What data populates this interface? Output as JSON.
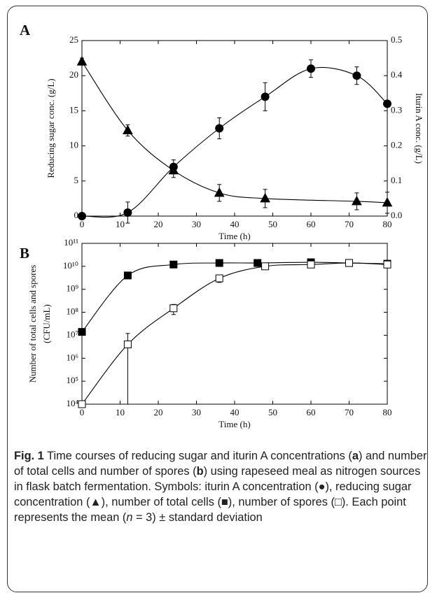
{
  "chart_data": [
    {
      "type": "line",
      "panel_label": "A",
      "xlabel": "Time (h)",
      "ylabel": "Reducing sugar conc. (g/L)",
      "y2label": "Iturin A conc. (g/L)",
      "xlim": [
        0,
        80
      ],
      "xticks": [
        0,
        10,
        20,
        30,
        40,
        50,
        60,
        70,
        80
      ],
      "ylim": [
        0,
        25
      ],
      "yticks": [
        0,
        5,
        10,
        15,
        20,
        25
      ],
      "y2lim": [
        0,
        0.5
      ],
      "y2ticks": [
        {
          "value": 0,
          "label": "0.0"
        },
        0.1,
        0.2,
        0.3,
        0.4,
        0.5
      ],
      "series": [
        {
          "marker": "triangle",
          "filled": true,
          "color": "#000000",
          "axis": "y",
          "x": [
            0,
            12,
            24,
            36,
            48,
            72,
            80
          ],
          "values": [
            22,
            12.2,
            6.5,
            3.3,
            2.5,
            2.1,
            1.9
          ],
          "errors": [
            0.5,
            0.8,
            1,
            1.2,
            1.3,
            1.2,
            1.5
          ]
        },
        {
          "marker": "circle",
          "filled": true,
          "color": "#000000",
          "axis": "y2",
          "x": [
            0,
            12,
            24,
            36,
            48,
            60,
            72,
            80
          ],
          "values": [
            0,
            0.01,
            0.14,
            0.25,
            0.34,
            0.42,
            0.4,
            0.32
          ],
          "errors": [
            0,
            0.03,
            0.02,
            0.03,
            0.04,
            0.025,
            0.025,
            0
          ]
        }
      ]
    },
    {
      "type": "line",
      "panel_label": "B",
      "xlabel": "Time (h)",
      "ylabel": [
        "Number of total cells and spores",
        "(CFU/mL)"
      ],
      "ylog": true,
      "xlim": [
        0,
        80
      ],
      "xticks": [
        0,
        10,
        20,
        30,
        40,
        50,
        60,
        70,
        80
      ],
      "ylim": [
        10000,
        100000000000
      ],
      "yticks": [
        {
          "value": 10000,
          "label": "10⁴"
        },
        {
          "value": 100000,
          "label": "10⁵"
        },
        {
          "value": 1000000,
          "label": "10⁶"
        },
        {
          "value": 10000000,
          "label": "10⁷"
        },
        {
          "value": 100000000,
          "label": "10⁸"
        },
        {
          "value": 1000000000,
          "label": "10⁹"
        },
        {
          "value": 10000000000,
          "label": "10¹⁰"
        },
        {
          "value": 100000000000,
          "label": "10¹¹"
        }
      ],
      "series": [
        {
          "marker": "square",
          "filled": true,
          "color": "#000000",
          "axis": "y",
          "x": [
            0,
            12,
            24,
            36,
            46,
            60,
            70,
            80
          ],
          "values": [
            14000000,
            4000000000,
            12000000000,
            14000000000,
            14000000000,
            15000000000,
            14000000000,
            13000000000
          ],
          "errors": [
            0,
            0,
            0,
            0,
            0,
            0,
            0,
            0
          ]
        },
        {
          "marker": "square",
          "filled": false,
          "color": "#000000",
          "axis": "y",
          "x": [
            0,
            12,
            24,
            36,
            48,
            60,
            70,
            80
          ],
          "values": [
            10000,
            4000000,
            150000000,
            3000000000,
            10000000000,
            12000000000,
            14000000000,
            12000000000
          ],
          "errors": [
            0,
            8000000,
            70000000,
            1000000000,
            1500000000,
            2000000000,
            2000000000,
            2000000000
          ]
        }
      ]
    }
  ],
  "caption": {
    "label": "Fig. 1",
    "runs": [
      {
        "text": " Time courses of reducing sugar and iturin A concentrations (",
        "style": "normal"
      },
      {
        "text": "a",
        "style": "bold"
      },
      {
        "text": ") and number of total cells and number of spores (",
        "style": "normal"
      },
      {
        "text": "b",
        "style": "bold"
      },
      {
        "text": ") using rapeseed meal as nitrogen sources in flask batch fermentation. Symbols: iturin A concentration (●), reducing sugar concentration (▲), number of total cells (■), number of spores (□). Each point represents the mean (",
        "style": "normal"
      },
      {
        "text": "n",
        "style": "italic"
      },
      {
        "text": " = 3) ± standard deviation",
        "style": "normal"
      }
    ]
  }
}
